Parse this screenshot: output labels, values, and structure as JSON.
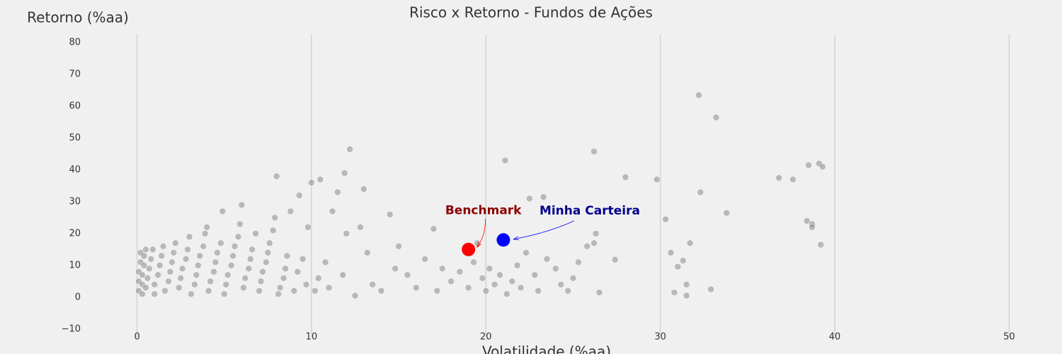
{
  "chart_data": {
    "type": "scatter",
    "title": "Risco x Retorno - Fundos de Ações",
    "xlabel": "Volatilidade (%aa)",
    "ylabel": "Retorno (%aa)",
    "xlim": [
      -2.5,
      52.5
    ],
    "ylim": [
      -12.5,
      82.5
    ],
    "xticks": [
      0,
      10,
      20,
      30,
      40,
      50
    ],
    "yticks": [
      {
        "value": -10,
        "label": "−10"
      },
      0,
      10,
      20,
      30,
      40,
      50,
      60,
      70,
      80
    ],
    "grid": "x",
    "series": [
      {
        "color": "#808080",
        "x": [
          0.1,
          0.1,
          0.1,
          0.2,
          0.2,
          0.3,
          0.3,
          0.3,
          0.4,
          0.4,
          0.5,
          0.5,
          0.6,
          0.7,
          0.8,
          0.9,
          1,
          1,
          1.2,
          1.3,
          1.4,
          1.5,
          1.6,
          1.8,
          1.9,
          2,
          2.1,
          2.2,
          2.4,
          2.5,
          2.6,
          2.8,
          2.9,
          3,
          3.1,
          3.3,
          3.4,
          3.5,
          3.6,
          3.8,
          3.9,
          4,
          4.1,
          4.2,
          4.4,
          4.5,
          4.6,
          4.8,
          4.9,
          5,
          5.1,
          5.2,
          5.4,
          5.5,
          5.6,
          5.8,
          5.9,
          6,
          6.1,
          6.2,
          6.4,
          6.5,
          6.6,
          6.8,
          7,
          7.1,
          7.2,
          7.4,
          7.5,
          7.6,
          7.8,
          7.9,
          8,
          8.1,
          8.2,
          8.4,
          8.5,
          8.6,
          8.8,
          9,
          9.2,
          9.3,
          9.5,
          9.7,
          9.8,
          10,
          10.2,
          10.4,
          10.5,
          10.8,
          11,
          11.2,
          11.5,
          11.8,
          11.9,
          12,
          12.2,
          12.5,
          12.8,
          13,
          13.2,
          13.5,
          14,
          14.5,
          14.8,
          15,
          15.5,
          16,
          16.5,
          17,
          17.2,
          17.5,
          18,
          18.5,
          19,
          19.3,
          19.5,
          19.8,
          20,
          20.2,
          20.5,
          20.8,
          21.1,
          21.2,
          21.5,
          21.8,
          22,
          22.3,
          22.5,
          22.8,
          23,
          23.3,
          23.5,
          24,
          24.3,
          24.7,
          25,
          25.3,
          25.8,
          26.2,
          26.2,
          26.3,
          26.5,
          27.4,
          28,
          29.8,
          30.3,
          30.6,
          30.8,
          31,
          31.3,
          31.5,
          31.5,
          31.7,
          32.2,
          32.3,
          32.9,
          33.2,
          33.8,
          36.8,
          37.6,
          38.4,
          38.5,
          38.7,
          38.7,
          39.1,
          39.2,
          39.3
        ],
        "values": [
          2,
          5,
          8,
          11,
          14,
          1,
          4,
          7,
          10,
          13,
          15,
          3,
          6,
          9,
          12,
          15,
          1,
          4,
          7,
          10,
          13,
          16,
          2,
          5,
          8,
          11,
          14,
          17,
          3,
          6,
          9,
          12,
          15,
          19,
          1,
          4,
          7,
          10,
          13,
          16,
          20,
          22,
          2,
          5,
          8,
          11,
          14,
          17,
          27,
          1,
          4,
          7,
          10,
          13,
          16,
          19,
          23,
          29,
          3,
          6,
          9,
          12,
          15,
          20,
          2,
          5,
          8,
          11,
          14,
          17,
          21,
          25,
          38,
          1,
          3,
          6,
          9,
          13,
          27,
          2,
          8,
          32,
          12,
          4,
          22,
          36,
          2,
          6,
          37,
          11,
          3,
          27,
          33,
          7,
          39,
          20,
          46.5,
          0.5,
          22,
          34,
          14,
          4,
          2,
          26,
          9,
          16,
          7,
          3,
          12,
          21.5,
          2,
          9,
          5,
          8,
          3,
          11,
          17,
          6,
          2,
          9,
          4,
          7,
          43,
          1,
          5,
          10,
          3,
          14,
          31,
          7,
          2,
          31.5,
          12,
          9,
          4,
          2,
          6,
          11,
          16,
          17,
          45.8,
          20,
          1.5,
          11.8,
          37.7,
          37,
          24.5,
          14,
          1.5,
          9.6,
          11.5,
          4,
          0.5,
          17,
          63.5,
          33,
          2.5,
          56.5,
          26.5,
          37.5,
          37,
          24,
          41.5,
          23,
          22,
          42,
          16.5,
          41
        ]
      }
    ],
    "highlights": [
      {
        "name": "Benchmark",
        "x": 19,
        "y": 15,
        "color": "#ff0000",
        "label_color": "#8b0000"
      },
      {
        "name": "Minha Carteira",
        "x": 21,
        "y": 18,
        "color": "#0000ff",
        "label_color": "#00008b"
      }
    ]
  }
}
